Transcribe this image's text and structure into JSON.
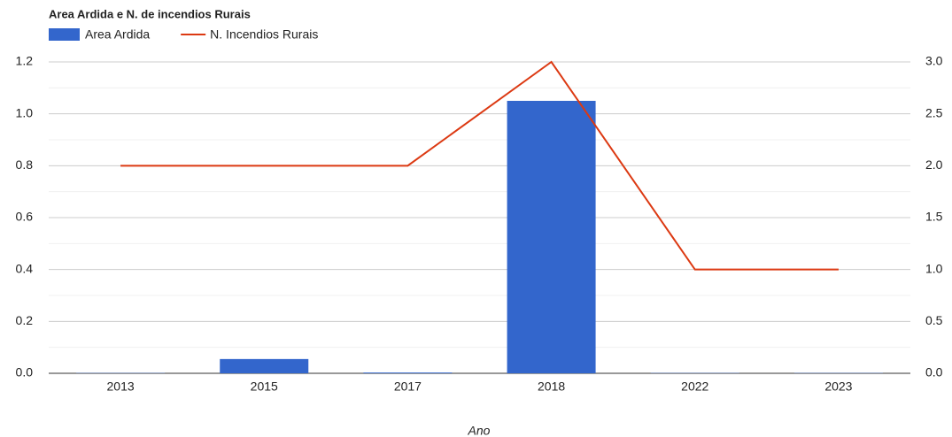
{
  "chart_data": {
    "type": "bar",
    "title": "Area Ardida e N. de incendios Rurais",
    "x_label": "Ano",
    "categories": [
      "2013",
      "2015",
      "2017",
      "2018",
      "2022",
      "2023"
    ],
    "series": [
      {
        "name": "Area Ardida",
        "type": "bar",
        "color": "#3366cc",
        "values": [
          0.001,
          0.055,
          0.003,
          1.05,
          0.001,
          0.001
        ]
      },
      {
        "name": "N. Incendios Rurais",
        "type": "line",
        "axis": "y2",
        "color": "#dc3912",
        "values": [
          2,
          2,
          2,
          3,
          1,
          1
        ]
      }
    ],
    "ylim": [
      0,
      1.2
    ],
    "yticks": [
      {
        "value": 0,
        "label": "0.0"
      },
      0.2,
      0.4,
      0.6,
      0.8,
      {
        "value": 1,
        "label": "1.0"
      },
      1.2
    ],
    "y_minor_ticks": [
      0.1,
      0.3,
      0.5,
      0.7,
      0.9,
      1.1
    ],
    "y2lim": [
      0,
      3
    ],
    "y2ticks": [
      {
        "value": 0,
        "label": "0.0"
      },
      0.5,
      {
        "value": 1,
        "label": "1.0"
      },
      1.5,
      {
        "value": 2,
        "label": "2.0"
      },
      2.5,
      {
        "value": 3,
        "label": "3.0"
      }
    ],
    "grid": true,
    "legend": "top-left"
  }
}
